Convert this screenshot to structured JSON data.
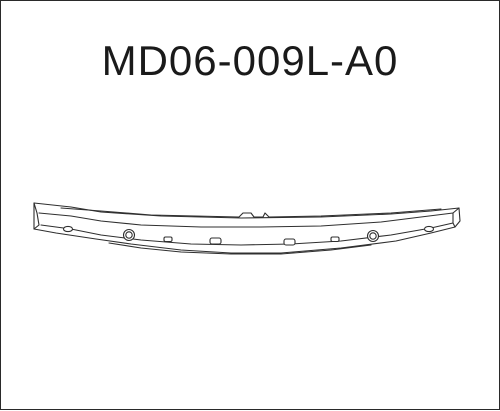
{
  "title": "MD06-009L-A0",
  "drawing": {
    "subject": "bumper-reinforcement-bar",
    "line_color": "#2f2f2f",
    "background_color": "#ffffff"
  }
}
